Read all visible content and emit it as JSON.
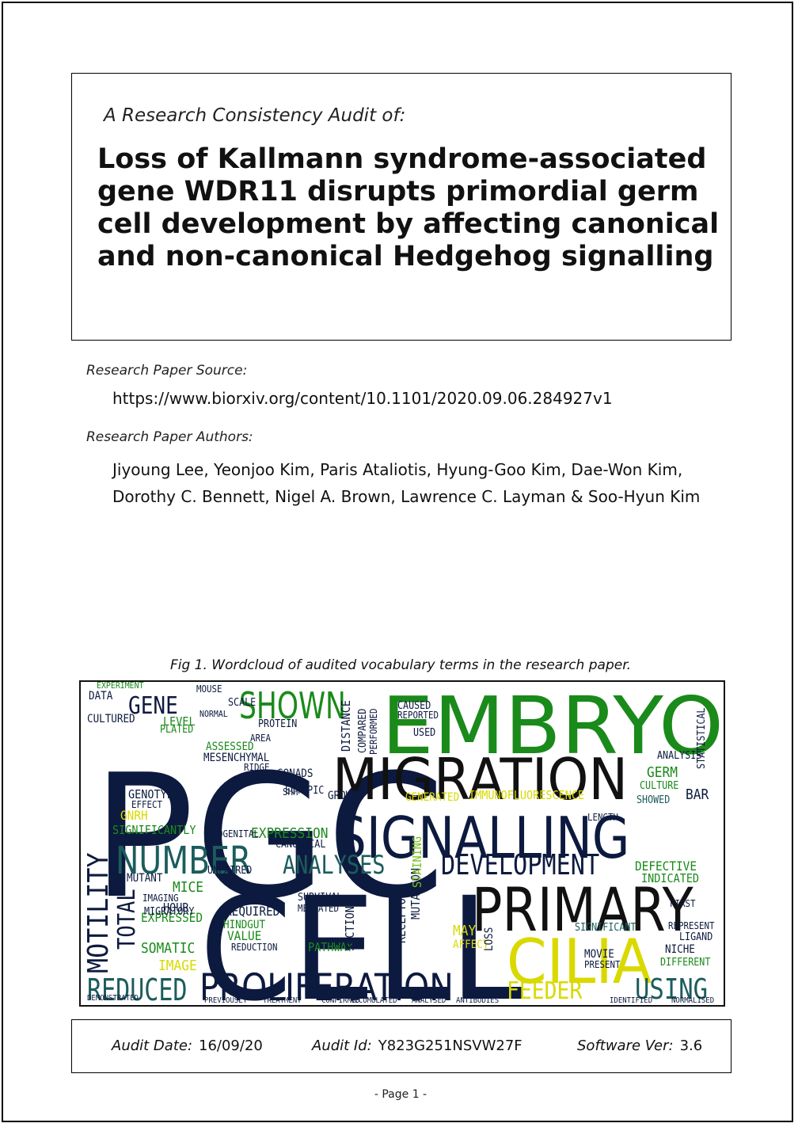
{
  "header": {
    "audit_of": "A Research Consistency Audit of:",
    "title": "Loss of Kallmann syndrome-associated gene WDR11 disrupts primordial germ cell development by affecting canonical and non-canonical Hedgehog signalling"
  },
  "source": {
    "label": "Research Paper Source:",
    "url": "https://www.biorxiv.org/content/10.1101/2020.09.06.284927v1"
  },
  "authors": {
    "label": "Research Paper Authors:",
    "names": "Jiyoung Lee, Yeonjoo Kim, Paris Ataliotis, Hyung-Goo Kim, Dae-Won Kim, Dorothy C. Bennett, Nigel A. Brown, Lawrence C. Layman & Soo-Hyun Kim"
  },
  "figure": {
    "caption": "Fig 1. Wordcloud of audited vocabulary terms in the research paper.",
    "words": [
      "PGC",
      "CELL",
      "EMBRYO",
      "MIGRATION",
      "SIGNALLING",
      "PRIMARY",
      "PROLIFERATION",
      "DEVELOPMENT",
      "CILIA",
      "NUMBER",
      "SHOWN",
      "GENE",
      "REDUCED",
      "ANALYSES",
      "MOTILITY",
      "TOTAL",
      "FEEDER",
      "USING",
      "EXPRESSION",
      "GERM",
      "DEFECTIVE",
      "INDICATED",
      "SOMATIC",
      "EXPRESSED",
      "IMAGE",
      "MICE",
      "HOUR",
      "MIGRATORY",
      "IMAGING",
      "REQUIRED",
      "HINDGUT",
      "VALUE",
      "REDUCTION",
      "PATHWAY",
      "SECTION",
      "RECEPTOR",
      "MUTATION",
      "STAINING",
      "GONADS",
      "MESENCHYMAL",
      "GENOTYPE",
      "EFFECT",
      "GNRH",
      "SIGNIFICANTLY",
      "UROGENITAL",
      "CANONICAL",
      "MUTANT",
      "UNPAIRED",
      "SCALE",
      "MOUSE",
      "NORMAL",
      "PROTEIN",
      "CULTURED",
      "DATA",
      "DISTANCE",
      "COMPARED",
      "PERFORMED",
      "CAUSED",
      "REPORTED",
      "USED",
      "IMMUNOFLUORESCENCE",
      "GENERATED",
      "GROWTH",
      "LENGTH",
      "SIGNIFICANT",
      "REPRESENT",
      "LIGAND",
      "NICHE",
      "DIFFERENT",
      "MOVIE",
      "PRESENT",
      "ANALYSIS",
      "BAR",
      "STATISTICAL",
      "SHOWED",
      "CULTURE",
      "FIRST",
      "ECTOPIC",
      "SHH",
      "ASSESSED",
      "AREA",
      "MAY",
      "AFFECT",
      "LOSS",
      "LEVEL",
      "PLATED",
      "RIDGE",
      "EXPERIMENT",
      "SURVIVAL",
      "MEDIATED",
      "DEMONSTRATED",
      "PREVIOUSLY",
      "TREATMENT",
      "CONFIRMED",
      "ACCUMULATED",
      "ANALYSED",
      "ANTIBODIES",
      "IDENTIFIED",
      "NORMALISED"
    ]
  },
  "footer": {
    "audit_date_label": "Audit Date:",
    "audit_date": "16/09/20",
    "audit_id_label": "Audit Id:",
    "audit_id": "Y823G251NSVW27F",
    "software_label": "Software Ver:",
    "software_ver": "3.6"
  },
  "page": {
    "number": "-  Page 1  -"
  },
  "colors": {
    "navy": "#0d1a3f",
    "green": "#1a8a1a",
    "teal": "#1c5c5c",
    "yellow": "#d9d900",
    "lime": "#7ac21c",
    "black": "#111111"
  }
}
